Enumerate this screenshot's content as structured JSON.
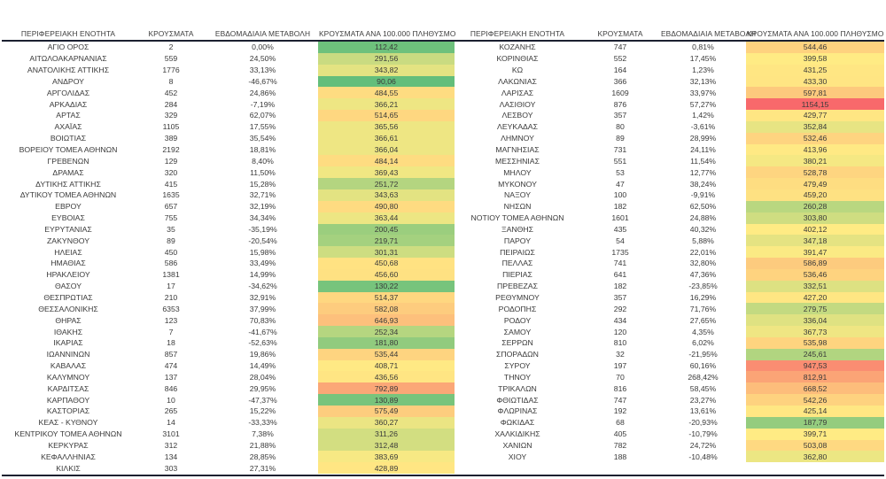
{
  "chart_data": {
    "type": "table",
    "columns": [
      "ΠΕΡΙΦΕΡΕΙΑΚΗ ΕΝΟΤΗΤΑ",
      "ΚΡΟΥΣΜΑΤΑ",
      "ΕΒΔΟΜΑΔΙΑΙΑ ΜΕΤΑΒΟΛΗ",
      "ΚΡΟΥΣΜΑΤΑ ΑΝΑ 100.000 ΠΛΗΘΥΣΜΟ"
    ],
    "conditional_format": {
      "column": "ΚΡΟΥΣΜΑΤΑ ΑΝΑ 100.000 ΠΛΗΘΥΣΜΟ",
      "scale": "3-color",
      "min_color": "#63BE7B",
      "mid_color": "#FFEB84",
      "max_color": "#F8696B",
      "mid_stat": "median"
    },
    "tables": [
      {
        "name": "left",
        "rows": [
          [
            "ΑΓΙΟ ΟΡΟΣ",
            "2",
            "0,00%",
            "112,42"
          ],
          [
            "ΑΙΤΩΛΟΑΚΑΡΝΑΝΙΑΣ",
            "559",
            "24,50%",
            "291,56"
          ],
          [
            "ΑΝΑΤΟΛΙΚΗΣ ΑΤΤΙΚΗΣ",
            "1776",
            "33,13%",
            "343,82"
          ],
          [
            "ΑΝΔΡΟΥ",
            "8",
            "-46,67%",
            "90,06"
          ],
          [
            "ΑΡΓΟΛΙΔΑΣ",
            "452",
            "24,86%",
            "484,55"
          ],
          [
            "ΑΡΚΑΔΙΑΣ",
            "284",
            "-7,19%",
            "366,21"
          ],
          [
            "ΑΡΤΑΣ",
            "329",
            "62,07%",
            "514,65"
          ],
          [
            "ΑΧΑΪΑΣ",
            "1105",
            "17,55%",
            "365,56"
          ],
          [
            "ΒΟΙΩΤΙΑΣ",
            "389",
            "35,54%",
            "366,61"
          ],
          [
            "ΒΟΡΕΙΟΥ ΤΟΜΕΑ ΑΘΗΝΩΝ",
            "2192",
            "18,81%",
            "366,04"
          ],
          [
            "ΓΡΕΒΕΝΩΝ",
            "129",
            "8,40%",
            "484,14"
          ],
          [
            "ΔΡΑΜΑΣ",
            "320",
            "11,50%",
            "369,43"
          ],
          [
            "ΔΥΤΙΚΗΣ ΑΤΤΙΚΗΣ",
            "415",
            "15,28%",
            "251,72"
          ],
          [
            "ΔΥΤΙΚΟΥ ΤΟΜΕΑ ΑΘΗΝΩΝ",
            "1635",
            "32,71%",
            "343,63"
          ],
          [
            "ΕΒΡΟΥ",
            "657",
            "32,19%",
            "490,80"
          ],
          [
            "ΕΥΒΟΙΑΣ",
            "755",
            "34,34%",
            "363,44"
          ],
          [
            "ΕΥΡΥΤΑΝΙΑΣ",
            "35",
            "-35,19%",
            "200,45"
          ],
          [
            "ΖΑΚΥΝΘΟΥ",
            "89",
            "-20,54%",
            "219,71"
          ],
          [
            "ΗΛΕΙΑΣ",
            "450",
            "15,98%",
            "301,31"
          ],
          [
            "ΗΜΑΘΙΑΣ",
            "586",
            "33,49%",
            "450,68"
          ],
          [
            "ΗΡΑΚΛΕΙΟΥ",
            "1381",
            "14,99%",
            "456,60"
          ],
          [
            "ΘΑΣΟΥ",
            "17",
            "-34,62%",
            "130,22"
          ],
          [
            "ΘΕΣΠΡΩΤΙΑΣ",
            "210",
            "32,91%",
            "514,37"
          ],
          [
            "ΘΕΣΣΑΛΟΝΙΚΗΣ",
            "6353",
            "37,99%",
            "582,08"
          ],
          [
            "ΘΗΡΑΣ",
            "123",
            "70,83%",
            "646,93"
          ],
          [
            "ΙΘΑΚΗΣ",
            "7",
            "-41,67%",
            "252,34"
          ],
          [
            "ΙΚΑΡΙΑΣ",
            "18",
            "-52,63%",
            "181,80"
          ],
          [
            "ΙΩΑΝΝΙΝΩΝ",
            "857",
            "19,86%",
            "535,44"
          ],
          [
            "ΚΑΒΑΛΑΣ",
            "474",
            "14,49%",
            "408,71"
          ],
          [
            "ΚΑΛΥΜΝΟΥ",
            "137",
            "28,04%",
            "436,56"
          ],
          [
            "ΚΑΡΔΙΤΣΑΣ",
            "846",
            "29,95%",
            "792,89"
          ],
          [
            "ΚΑΡΠΑΘΟΥ",
            "10",
            "-47,37%",
            "130,89"
          ],
          [
            "ΚΑΣΤΟΡΙΑΣ",
            "265",
            "15,22%",
            "575,49"
          ],
          [
            "ΚΕΑΣ - ΚΥΘΝΟΥ",
            "14",
            "-33,33%",
            "360,27"
          ],
          [
            "ΚΕΝΤΡΙΚΟΥ ΤΟΜΕΑ ΑΘΗΝΩΝ",
            "3101",
            "7,38%",
            "311,26"
          ],
          [
            "ΚΕΡΚΥΡΑΣ",
            "312",
            "21,88%",
            "312,48"
          ],
          [
            "ΚΕΦΑΛΛΗΝΙΑΣ",
            "134",
            "28,85%",
            "383,69"
          ],
          [
            "ΚΙΛΚΙΣ",
            "303",
            "27,31%",
            "428,89"
          ]
        ]
      },
      {
        "name": "right",
        "rows": [
          [
            "ΚΟΖΑΝΗΣ",
            "747",
            "0,81%",
            "544,46"
          ],
          [
            "ΚΟΡΙΝΘΙΑΣ",
            "552",
            "17,45%",
            "399,58"
          ],
          [
            "ΚΩ",
            "164",
            "1,23%",
            "431,25"
          ],
          [
            "ΛΑΚΩΝΙΑΣ",
            "366",
            "32,13%",
            "433,30"
          ],
          [
            "ΛΑΡΙΣΑΣ",
            "1609",
            "33,97%",
            "597,81"
          ],
          [
            "ΛΑΣΙΘΙΟΥ",
            "876",
            "57,27%",
            "1154,15"
          ],
          [
            "ΛΕΣΒΟΥ",
            "357",
            "1,42%",
            "429,77"
          ],
          [
            "ΛΕΥΚΑΔΑΣ",
            "80",
            "-3,61%",
            "352,84"
          ],
          [
            "ΛΗΜΝΟΥ",
            "89",
            "28,99%",
            "532,46"
          ],
          [
            "ΜΑΓΝΗΣΙΑΣ",
            "731",
            "24,11%",
            "413,96"
          ],
          [
            "ΜΕΣΣΗΝΙΑΣ",
            "551",
            "11,54%",
            "380,21"
          ],
          [
            "ΜΗΛΟΥ",
            "53",
            "12,77%",
            "528,78"
          ],
          [
            "ΜΥΚΟΝΟΥ",
            "47",
            "38,24%",
            "479,49"
          ],
          [
            "ΝΑΞΟΥ",
            "100",
            "-9,91%",
            "459,20"
          ],
          [
            "ΝΗΣΩΝ",
            "182",
            "62,50%",
            "260,28"
          ],
          [
            "ΝΟΤΙΟΥ ΤΟΜΕΑ ΑΘΗΝΩΝ",
            "1601",
            "24,88%",
            "303,80"
          ],
          [
            "ΞΑΝΘΗΣ",
            "435",
            "40,32%",
            "402,12"
          ],
          [
            "ΠΑΡΟΥ",
            "54",
            "5,88%",
            "347,18"
          ],
          [
            "ΠΕΙΡΑΙΩΣ",
            "1735",
            "22,01%",
            "391,47"
          ],
          [
            "ΠΕΛΛΑΣ",
            "741",
            "32,80%",
            "586,89"
          ],
          [
            "ΠΙΕΡΙΑΣ",
            "641",
            "47,36%",
            "536,46"
          ],
          [
            "ΠΡΕΒΕΖΑΣ",
            "182",
            "-23,85%",
            "332,51"
          ],
          [
            "ΡΕΘΥΜΝΟΥ",
            "357",
            "16,29%",
            "427,20"
          ],
          [
            "ΡΟΔΟΠΗΣ",
            "292",
            "71,76%",
            "279,75"
          ],
          [
            "ΡΟΔΟΥ",
            "434",
            "27,65%",
            "336,04"
          ],
          [
            "ΣΑΜΟΥ",
            "120",
            "4,35%",
            "367,73"
          ],
          [
            "ΣΕΡΡΩΝ",
            "810",
            "6,02%",
            "535,98"
          ],
          [
            "ΣΠΟΡΑΔΩΝ",
            "32",
            "-21,95%",
            "245,61"
          ],
          [
            "ΣΥΡΟΥ",
            "197",
            "60,16%",
            "947,53"
          ],
          [
            "ΤΗΝΟΥ",
            "70",
            "268,42%",
            "812,91"
          ],
          [
            "ΤΡΙΚΑΛΩΝ",
            "816",
            "58,45%",
            "668,52"
          ],
          [
            "ΦΘΙΩΤΙΔΑΣ",
            "747",
            "23,27%",
            "542,26"
          ],
          [
            "ΦΛΩΡΙΝΑΣ",
            "192",
            "13,61%",
            "425,14"
          ],
          [
            "ΦΩΚΙΔΑΣ",
            "68",
            "-20,93%",
            "187,79"
          ],
          [
            "ΧΑΛΚΙΔΙΚΗΣ",
            "405",
            "-10,79%",
            "399,71"
          ],
          [
            "ΧΑΝΙΩΝ",
            "782",
            "24,72%",
            "503,08"
          ],
          [
            "ΧΙΟΥ",
            "188",
            "-10,48%",
            "362,80"
          ]
        ]
      }
    ]
  }
}
